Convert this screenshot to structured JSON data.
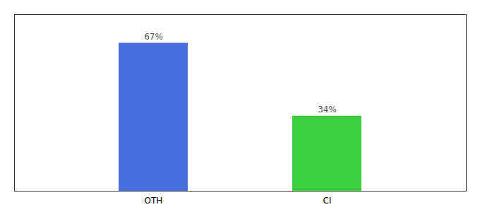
{
  "chart_data": {
    "type": "bar",
    "categories": [
      "OTH",
      "CI"
    ],
    "values": [
      67,
      34
    ],
    "value_labels": [
      "67%",
      "34%"
    ],
    "colors": [
      "#4a6edb",
      "#3ecf3e"
    ],
    "ylim": [
      0,
      80
    ],
    "data_labels": true,
    "tick_labels": "x",
    "grid": false
  }
}
